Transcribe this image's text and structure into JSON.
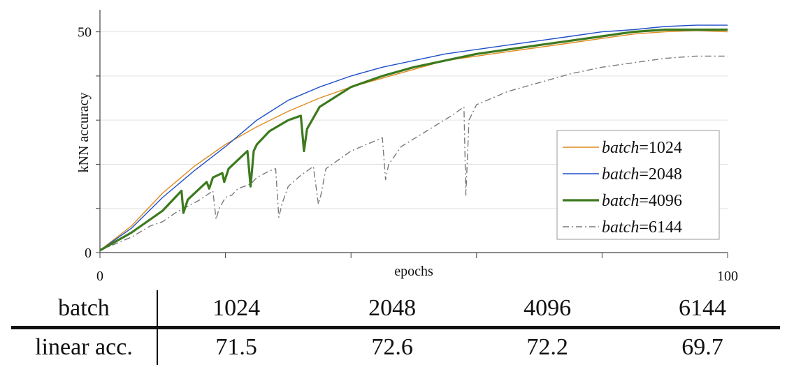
{
  "chart_data": {
    "type": "line",
    "title": "",
    "xlabel": "epochs",
    "ylabel": "kNN accuracy",
    "xlim": [
      0,
      100
    ],
    "ylim": [
      0,
      55
    ],
    "x_ticks_labeled": [
      0,
      100
    ],
    "x_ticks": [
      0,
      20,
      40,
      60,
      80,
      100
    ],
    "y_ticks_labeled": [
      0,
      50
    ],
    "y_ticks": [
      0,
      10,
      20,
      30,
      40,
      50
    ],
    "grid": "horizontal",
    "legend_position": "lower-right",
    "series": [
      {
        "name": "batch=1024",
        "label_var": "batch",
        "label_val": "1024",
        "color": "#e08a1e",
        "width": 1.4,
        "dash": "",
        "x": [
          0,
          5,
          10,
          15,
          20,
          25,
          30,
          35,
          40,
          45,
          50,
          55,
          60,
          65,
          70,
          75,
          80,
          85,
          90,
          95,
          100
        ],
        "y": [
          0.5,
          6,
          13.5,
          19.5,
          24.5,
          28.5,
          32,
          35,
          37.5,
          39.5,
          41.5,
          43.5,
          44.5,
          45.5,
          46.5,
          47.5,
          48.5,
          49.5,
          50,
          50.3,
          50
        ]
      },
      {
        "name": "batch=2048",
        "label_var": "batch",
        "label_val": "2048",
        "color": "#1f4fc8",
        "width": 1.4,
        "dash": "",
        "x": [
          0,
          5,
          10,
          15,
          20,
          25,
          30,
          35,
          40,
          45,
          50,
          55,
          60,
          65,
          70,
          75,
          80,
          85,
          90,
          95,
          100
        ],
        "y": [
          0.5,
          5.5,
          12.5,
          18.5,
          24,
          30,
          34.5,
          37.5,
          40,
          42,
          43.5,
          45,
          46,
          47,
          48,
          49,
          50,
          50.5,
          51.2,
          51.5,
          51.5
        ]
      },
      {
        "name": "batch=4096",
        "label_var": "batch",
        "label_val": "4096",
        "color": "#3c7a1e",
        "width": 3.2,
        "dash": "",
        "x": [
          0,
          5,
          10,
          13,
          13.3,
          14,
          17,
          17.4,
          18,
          19.5,
          19.8,
          20.5,
          22,
          23.5,
          24,
          24.5,
          25,
          27,
          30,
          32,
          32.5,
          33,
          35,
          40,
          45,
          50,
          55,
          60,
          65,
          70,
          75,
          80,
          85,
          90,
          95,
          100
        ],
        "y": [
          0.5,
          4.5,
          9.5,
          14,
          9,
          12,
          16,
          14.5,
          17,
          18,
          16,
          19,
          21,
          23,
          15,
          23,
          24.5,
          27.5,
          30,
          31,
          23,
          28,
          33,
          37.5,
          40,
          42,
          43.5,
          45,
          46,
          47,
          48,
          49,
          50,
          50.5,
          50.5,
          50.5
        ]
      },
      {
        "name": "batch=6144",
        "label_var": "batch",
        "label_val": "6144",
        "color": "#7a7a7a",
        "width": 1.4,
        "dash": "9 4 2 4",
        "x": [
          0,
          5,
          8,
          10,
          12,
          14,
          16,
          18,
          18.5,
          19,
          20,
          21,
          22,
          24,
          25,
          27,
          28,
          28.5,
          29,
          30,
          32,
          34,
          34.8,
          35.2,
          36,
          40,
          45,
          45.5,
          46,
          48,
          52,
          56,
          58,
          58.3,
          58.8,
          60,
          65,
          70,
          75,
          80,
          85,
          90,
          95,
          100
        ],
        "y": [
          0.5,
          3.5,
          6,
          7,
          9,
          10.5,
          12,
          14,
          7.5,
          10,
          12.5,
          13,
          14.5,
          15.5,
          17,
          18.5,
          19,
          8,
          11,
          15,
          17.5,
          19.5,
          11,
          13,
          19,
          23,
          26,
          16.5,
          20,
          24,
          27.5,
          31,
          33,
          13,
          30,
          33.5,
          36.5,
          38.5,
          40.5,
          42,
          43,
          44,
          44.5,
          44.5
        ]
      }
    ]
  },
  "table": {
    "header": [
      "batch",
      "1024",
      "2048",
      "4096",
      "6144"
    ],
    "row": [
      "linear acc.",
      "71.5",
      "72.6",
      "72.2",
      "69.7"
    ]
  }
}
